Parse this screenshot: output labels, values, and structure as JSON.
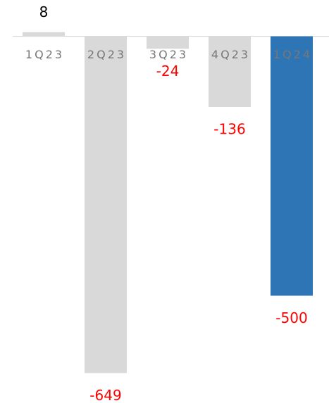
{
  "chart_data": {
    "type": "bar",
    "categories": [
      "1Q23",
      "2Q23",
      "3Q23",
      "4Q23",
      "1Q24"
    ],
    "values": [
      8,
      -649,
      -24,
      -136,
      -500
    ],
    "colors": [
      "#d9d9d9",
      "#d9d9d9",
      "#d9d9d9",
      "#d9d9d9",
      "#2e75b6"
    ],
    "positive_label_color": "#000000",
    "negative_label_color": "#ff0000",
    "ylim": [
      -700,
      70
    ],
    "grid": false
  }
}
